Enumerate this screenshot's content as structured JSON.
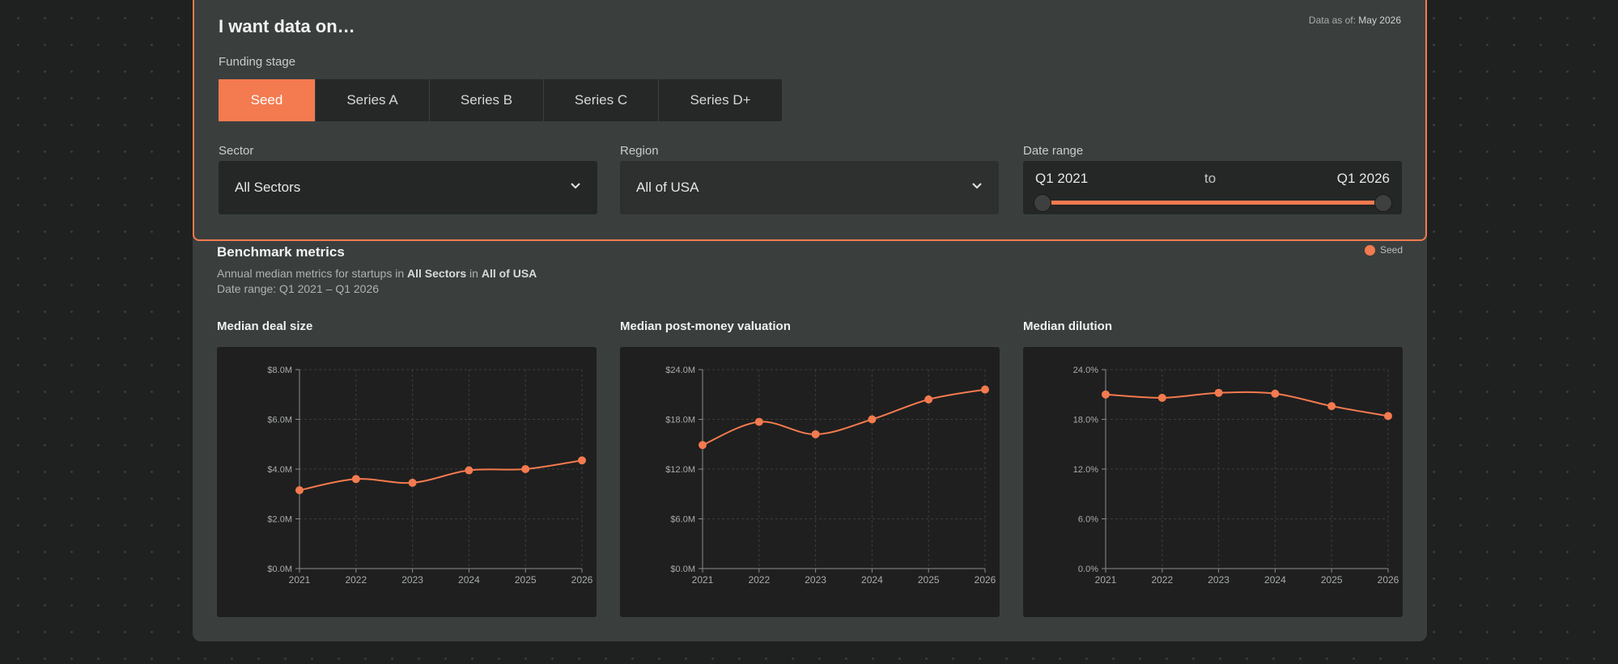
{
  "header": {
    "title": "I want data on…",
    "data_as_of_label": "Data as of:",
    "data_as_of_value": "May 2026"
  },
  "filters": {
    "funding_stage_label": "Funding stage",
    "stages": [
      "Seed",
      "Series A",
      "Series B",
      "Series C",
      "Series D+"
    ],
    "active_stage": "Seed",
    "sector_label": "Sector",
    "sector_value": "All Sectors",
    "region_label": "Region",
    "region_value": "All of USA",
    "date_range_label": "Date range",
    "date_from": "Q1 2021",
    "date_to_word": "to",
    "date_to": "Q1 2026"
  },
  "benchmark": {
    "title": "Benchmark metrics",
    "subtitle_prefix": "Annual median metrics for startups in ",
    "subtitle_sector": "All Sectors",
    "subtitle_mid": " in ",
    "subtitle_region": "All of USA",
    "date_line": "Date range: Q1 2021 – Q1 2026",
    "legend": "Seed"
  },
  "colors": {
    "accent": "#f47a4f",
    "panel": "#3a3f3e",
    "chart_bg": "#1f1f1f"
  },
  "chart_data": [
    {
      "type": "line",
      "title": "Median deal size",
      "x": [
        "2021",
        "2022",
        "2023",
        "2024",
        "2025",
        "2026"
      ],
      "yticks": [
        "$0.0M",
        "$2.0M",
        "$4.0M",
        "$6.0M",
        "$8.0M"
      ],
      "ylim": [
        0,
        8
      ],
      "series": [
        {
          "name": "Seed",
          "values": [
            3.15,
            3.6,
            3.45,
            3.95,
            4.0,
            4.35
          ]
        }
      ],
      "grid": true
    },
    {
      "type": "line",
      "title": "Median post-money valuation",
      "x": [
        "2021",
        "2022",
        "2023",
        "2024",
        "2025",
        "2026"
      ],
      "yticks": [
        "$0.0M",
        "$6.0M",
        "$12.0M",
        "$18.0M",
        "$24.0M"
      ],
      "ylim": [
        0,
        24
      ],
      "series": [
        {
          "name": "Seed",
          "values": [
            14.9,
            17.7,
            16.2,
            18.0,
            20.4,
            21.6
          ]
        }
      ],
      "grid": true
    },
    {
      "type": "line",
      "title": "Median dilution",
      "x": [
        "2021",
        "2022",
        "2023",
        "2024",
        "2025",
        "2026"
      ],
      "yticks": [
        "0.0%",
        "6.0%",
        "12.0%",
        "18.0%",
        "24.0%"
      ],
      "ylim": [
        0,
        24
      ],
      "series": [
        {
          "name": "Seed",
          "values": [
            21.0,
            20.6,
            21.2,
            21.1,
            19.6,
            18.4
          ]
        }
      ],
      "grid": true
    }
  ]
}
